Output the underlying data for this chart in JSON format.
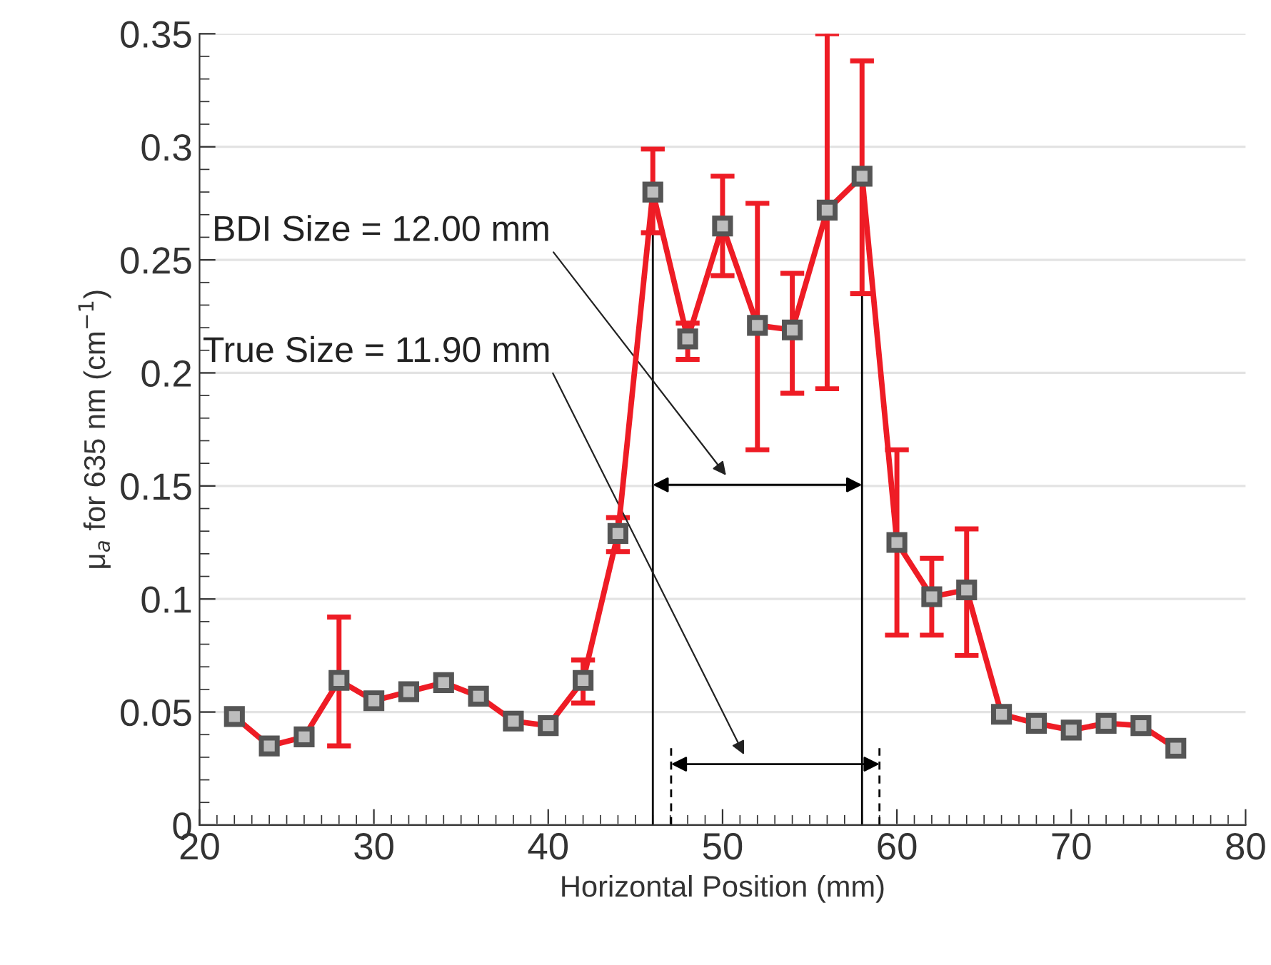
{
  "chart_data": {
    "type": "line",
    "xlabel": "Horizontal Position (mm)",
    "ylabel": "μ$_{a}$ for 635 nm (cm$^{−1}$)",
    "xlim": [
      20,
      80
    ],
    "xticks": [
      20,
      30,
      40,
      50,
      60,
      70,
      80
    ],
    "ylim": [
      0,
      0.35
    ],
    "yticks": [
      0,
      0.05,
      0.1,
      0.15,
      0.2,
      0.25,
      0.3,
      0.35
    ],
    "grid": "y",
    "marker": "square",
    "line_style": "solid",
    "series": [
      {
        "color": "#ee1c25",
        "x": [
          22,
          24,
          26,
          28,
          30,
          32,
          34,
          36,
          38,
          40,
          42,
          44,
          46,
          48,
          50,
          52,
          54,
          56,
          58,
          60,
          62,
          64,
          66,
          68,
          70,
          72,
          74,
          76
        ],
        "values": [
          0.048,
          0.035,
          0.039,
          0.064,
          0.055,
          0.059,
          0.063,
          0.057,
          0.046,
          0.044,
          0.064,
          0.129,
          0.28,
          0.215,
          0.265,
          0.221,
          0.219,
          0.272,
          0.287,
          0.125,
          0.101,
          0.104,
          0.049,
          0.045,
          0.042,
          0.045,
          0.044,
          0.034
        ],
        "errors": [
          null,
          null,
          null,
          [
            0.035,
            0.092
          ],
          null,
          null,
          null,
          null,
          null,
          null,
          [
            0.054,
            0.073
          ],
          [
            0.121,
            0.136
          ],
          [
            0.262,
            0.299
          ],
          [
            0.206,
            0.222
          ],
          [
            0.243,
            0.287
          ],
          [
            0.166,
            0.275
          ],
          [
            0.191,
            0.244
          ],
          [
            0.193,
            0.35
          ],
          [
            0.235,
            0.338
          ],
          [
            0.084,
            0.166
          ],
          [
            0.084,
            0.118
          ],
          [
            0.075,
            0.131
          ],
          null,
          null,
          null,
          null,
          null,
          null
        ]
      },
      {
        "color": "#000000",
        "marker": "none",
        "line_style": "solid",
        "x": [
          46,
          46
        ],
        "values": [
          0,
          0.28
        ]
      },
      {
        "color": "#000000",
        "marker": "none",
        "line_style": "solid",
        "x": [
          58,
          58
        ],
        "values": [
          0,
          0.287
        ]
      },
      {
        "color": "#000000",
        "marker": "none",
        "line_style": "dashed",
        "x": [
          47.05,
          47.05
        ],
        "values": [
          0,
          0.034
        ]
      },
      {
        "color": "#000000",
        "marker": "none",
        "line_style": "dashed",
        "x": [
          59,
          59
        ],
        "values": [
          0,
          0.034
        ]
      }
    ],
    "annotations": [
      "BDI Size = 12.00 mm",
      "True Size = 11.90 mm"
    ]
  }
}
